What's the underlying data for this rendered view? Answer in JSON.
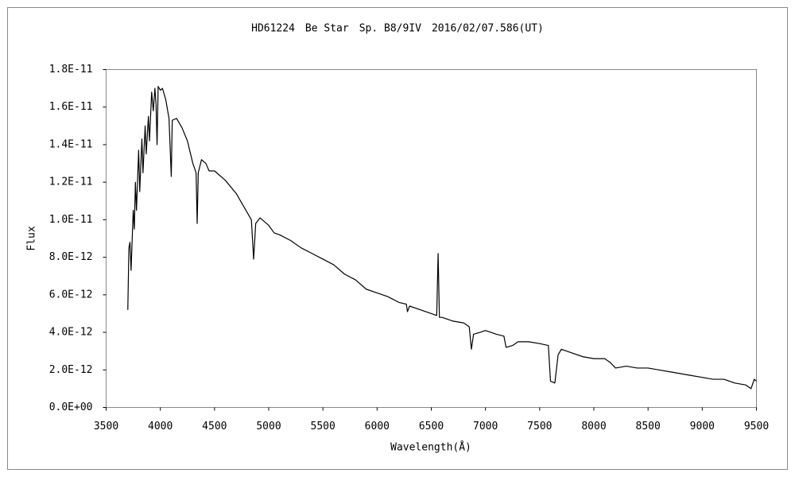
{
  "chart_data": {
    "type": "line",
    "title": "HD61224　Be Star　Sp. B8/9IV　2016/02/07.586(UT)",
    "x_label": "Wavelength(Å)",
    "y_label": "Flux",
    "color": "#000000",
    "grid": false,
    "xlim": [
      3500,
      9500
    ],
    "xticks": [
      3500,
      4000,
      4500,
      5000,
      5500,
      6000,
      6500,
      7000,
      7500,
      8000,
      8500,
      9000,
      9500
    ],
    "ylim": [
      0,
      1.8e-11
    ],
    "yticks": [
      {
        "value": 0,
        "label": "0.0E+00"
      },
      {
        "value": 2e-12,
        "label": "2.0E-12"
      },
      {
        "value": 4e-12,
        "label": "4.0E-12"
      },
      {
        "value": 6e-12,
        "label": "6.0E-12"
      },
      {
        "value": 8e-12,
        "label": "8.0E-12"
      },
      {
        "value": 1e-11,
        "label": "1.0E-11"
      },
      {
        "value": 1.2e-11,
        "label": "1.2E-11"
      },
      {
        "value": 1.4e-11,
        "label": "1.4E-11"
      },
      {
        "value": 1.6e-11,
        "label": "1.6E-11"
      },
      {
        "value": 1.8e-11,
        "label": "1.8E-11"
      }
    ],
    "x": [
      3700,
      3710,
      3720,
      3730,
      3750,
      3760,
      3770,
      3780,
      3800,
      3810,
      3830,
      3840,
      3860,
      3870,
      3890,
      3900,
      3920,
      3935,
      3950,
      3960,
      3970,
      3980,
      4000,
      4020,
      4050,
      4080,
      4101,
      4110,
      4150,
      4200,
      4250,
      4300,
      4330,
      4340,
      4350,
      4380,
      4420,
      4450,
      4500,
      4600,
      4700,
      4800,
      4840,
      4861,
      4880,
      4920,
      5000,
      5050,
      5100,
      5200,
      5300,
      5400,
      5500,
      5600,
      5700,
      5800,
      5900,
      6000,
      6100,
      6200,
      6270,
      6280,
      6300,
      6400,
      6500,
      6550,
      6563,
      6575,
      6600,
      6700,
      6800,
      6850,
      6870,
      6890,
      6950,
      7000,
      7100,
      7170,
      7190,
      7250,
      7300,
      7400,
      7500,
      7580,
      7600,
      7640,
      7670,
      7700,
      7800,
      7900,
      8000,
      8100,
      8150,
      8200,
      8300,
      8400,
      8500,
      8600,
      8700,
      8800,
      8900,
      9000,
      9100,
      9200,
      9300,
      9400,
      9450,
      9480,
      9500
    ],
    "values": [
      5.2e-12,
      8.5e-12,
      8.8e-12,
      7.3e-12,
      1.05e-11,
      9.5e-12,
      1.2e-11,
      1.05e-11,
      1.37e-11,
      1.15e-11,
      1.43e-11,
      1.25e-11,
      1.5e-11,
      1.35e-11,
      1.55e-11,
      1.42e-11,
      1.68e-11,
      1.58e-11,
      1.7e-11,
      1.62e-11,
      1.4e-11,
      1.71e-11,
      1.69e-11,
      1.7e-11,
      1.64e-11,
      1.54e-11,
      1.23e-11,
      1.53e-11,
      1.54e-11,
      1.49e-11,
      1.42e-11,
      1.3e-11,
      1.25e-11,
      9.8e-12,
      1.25e-11,
      1.32e-11,
      1.3e-11,
      1.26e-11,
      1.26e-11,
      1.21e-11,
      1.14e-11,
      1.04e-11,
      1e-11,
      7.9e-12,
      9.8e-12,
      1.01e-11,
      9.7e-12,
      9.3e-12,
      9.2e-12,
      8.9e-12,
      8.5e-12,
      8.2e-12,
      7.9e-12,
      7.6e-12,
      7.1e-12,
      6.8e-12,
      6.3e-12,
      6.1e-12,
      5.9e-12,
      5.6e-12,
      5.5e-12,
      5.1e-12,
      5.4e-12,
      5.2e-12,
      5e-12,
      4.9e-12,
      8.2e-12,
      4.8e-12,
      4.8e-12,
      4.6e-12,
      4.5e-12,
      4.3e-12,
      3.1e-12,
      3.9e-12,
      4e-12,
      4.1e-12,
      3.9e-12,
      3.8e-12,
      3.2e-12,
      3.3e-12,
      3.5e-12,
      3.5e-12,
      3.4e-12,
      3.3e-12,
      1.4e-12,
      1.3e-12,
      2.8e-12,
      3.1e-12,
      2.9e-12,
      2.7e-12,
      2.6e-12,
      2.6e-12,
      2.4e-12,
      2.1e-12,
      2.2e-12,
      2.1e-12,
      2.1e-12,
      2e-12,
      1.9e-12,
      1.8e-12,
      1.7e-12,
      1.6e-12,
      1.5e-12,
      1.5e-12,
      1.3e-12,
      1.2e-12,
      1e-12,
      1.5e-12,
      1.4e-12
    ]
  }
}
